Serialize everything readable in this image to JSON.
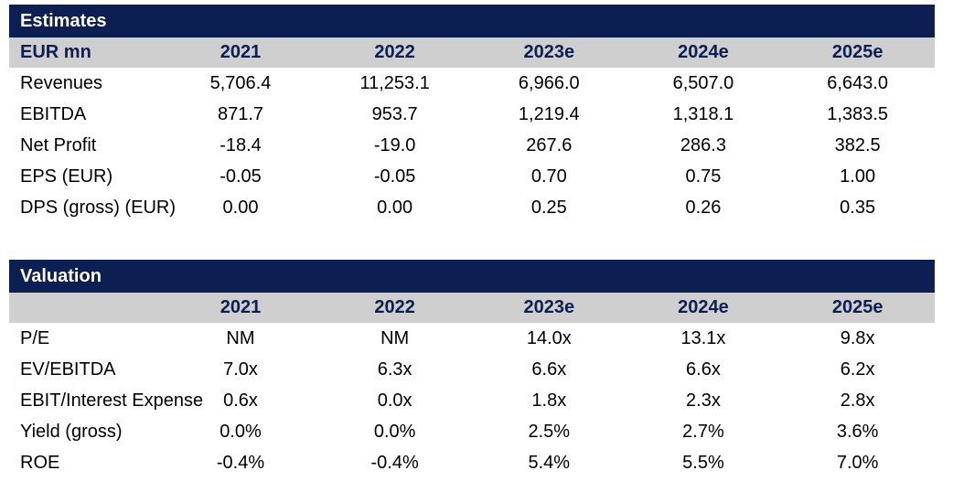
{
  "estimates": {
    "title": "Estimates",
    "header": {
      "label": "EUR mn",
      "years": [
        "2021",
        "2022",
        "2023e",
        "2024e",
        "2025e"
      ]
    },
    "rows": [
      {
        "label": "Revenues",
        "values": [
          "5,706.4",
          "11,253.1",
          "6,966.0",
          "6,507.0",
          "6,643.0"
        ]
      },
      {
        "label": "EBITDA",
        "values": [
          "871.7",
          "953.7",
          "1,219.4",
          "1,318.1",
          "1,383.5"
        ]
      },
      {
        "label": "Net Profit",
        "values": [
          "-18.4",
          "-19.0",
          "267.6",
          "286.3",
          "382.5"
        ]
      },
      {
        "label": "EPS (EUR)",
        "values": [
          "-0.05",
          "-0.05",
          "0.70",
          "0.75",
          "1.00"
        ]
      },
      {
        "label": "DPS (gross) (EUR)",
        "values": [
          "0.00",
          "0.00",
          "0.25",
          "0.26",
          "0.35"
        ]
      }
    ]
  },
  "valuation": {
    "title": "Valuation",
    "header": {
      "label": "",
      "years": [
        "2021",
        "2022",
        "2023e",
        "2024e",
        "2025e"
      ]
    },
    "rows": [
      {
        "label": "P/E",
        "values": [
          "NM",
          "NM",
          "14.0x",
          "13.1x",
          "9.8x"
        ]
      },
      {
        "label": "EV/EBITDA",
        "values": [
          "7.0x",
          "6.3x",
          "6.6x",
          "6.6x",
          "6.2x"
        ]
      },
      {
        "label": "EBIT/Interest Expense",
        "values": [
          "0.6x",
          "0.0x",
          "1.8x",
          "2.3x",
          "2.8x"
        ]
      },
      {
        "label": "Yield (gross)",
        "values": [
          "0.0%",
          "0.0%",
          "2.5%",
          "2.7%",
          "3.6%"
        ]
      },
      {
        "label": "ROE",
        "values": [
          "-0.4%",
          "-0.4%",
          "5.4%",
          "5.5%",
          "7.0%"
        ]
      }
    ]
  }
}
